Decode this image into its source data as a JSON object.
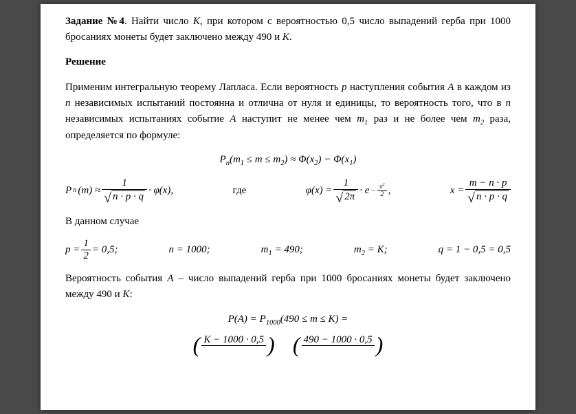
{
  "t": {
    "task_label": "Задание №4",
    "task_body_1": ". Найти число ",
    "task_body_2": ", при котором с вероятностью 0,5 число выпадений герба при 1000 бросаниях монеты будет заключено между 490 и ",
    "task_body_3": ".",
    "K": "K",
    "solution": "Решение",
    "p1a": "Применим интегральную теорему Лапласа. Если вероятность ",
    "p1b": " наступления события ",
    "p1c": " в каждом из ",
    "p1d": " независимых испытаний постоянна и отлична от нуля и единицы, то вероятность того, что в ",
    "p1e": " независимых испытаниях событие ",
    "p1f": " наступит не менее чем ",
    "p1g": " раз и не более чем ",
    "p1h": " раза, определяется по формуле:",
    "p": "p",
    "A": "A",
    "n": "n",
    "m1": "m",
    "m2": "m",
    "eq1_pn": "P",
    "eq1_sub": "n",
    "eq1_lhs_a": "(m",
    "eq1_lhs_b": " ≤ m ≤ m",
    "eq1_lhs_c": ") ≈ Φ(x",
    "eq1_lhs_d": ") − Φ(x",
    "eq1_lhs_e": ")",
    "sub1": "1",
    "sub2": "2",
    "eq2_pn": "P",
    "eq2_m": "(m) ≈ ",
    "eq2_num1": "1",
    "eq2_den1a": "n · p · q",
    "eq2_phi": " · φ(x),",
    "eq2_where": "где",
    "eq2_phieq": "φ(x) = ",
    "eq2_num2": "1",
    "eq2_den2": "2π",
    "eq2_dot_e": " · e",
    "eq2_exp_a": "−",
    "eq2_exp_b": "x",
    "eq2_exp_c": "2",
    "eq2_exp_d": "2",
    "eq2_comma": " ,",
    "eq2_xeq": "x = ",
    "eq2_num3": "m − n · p",
    "eq2_den3": "n · p · q",
    "in_this_case": "В данном случае",
    "g_p": "p = ",
    "g_p_num": "1",
    "g_p_den": "2",
    "g_p_val": " = 0,5;",
    "g_n": "n = 1000;",
    "g_m1": "m",
    "g_m1_eq": " = 490;",
    "g_m2": "m",
    "g_m2_eq": " = K;",
    "g_q": "q = 1 − 0,5 = 0,5",
    "p2a": "Вероятность события ",
    "p2b": " – число выпадений герба при 1000 бросаниях монеты будет заключено между 490 и ",
    "p2c": ":",
    "eq3": "P(A) = P",
    "eq3_sub": "1000",
    "eq3_rest": "(490 ≤ m ≤ K) =",
    "eq4_left_num": "K − 1000 · 0,5",
    "eq4_right_num": "490 − 1000 · 0,5"
  }
}
